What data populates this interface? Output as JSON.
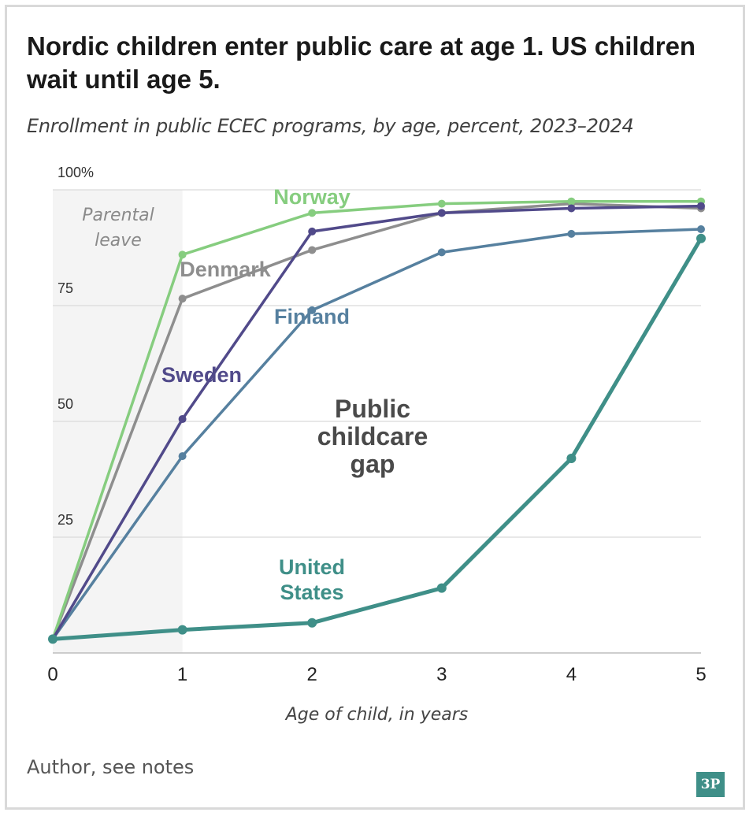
{
  "title": "Nordic children enter public care at age 1. US children wait until age 5.",
  "subtitle": "Enrollment in public ECEC programs, by age, percent, 2023–2024",
  "source": "Author, see notes",
  "logo": "3P",
  "chart_data": {
    "type": "line",
    "x": [
      0,
      1,
      2,
      3,
      4,
      5
    ],
    "xlabel": "Age of child, in years",
    "ylabel": "",
    "xlim": [
      0,
      5
    ],
    "ylim": [
      0,
      100
    ],
    "y_ticks": [
      {
        "value": 25,
        "label": "25"
      },
      {
        "value": 50,
        "label": "50"
      },
      {
        "value": 75,
        "label": "75"
      },
      {
        "value": 100,
        "label": "100%"
      }
    ],
    "x_tick_labels": [
      "0",
      "1",
      "2",
      "3",
      "4",
      "5"
    ],
    "grid": true,
    "shaded_region": {
      "x_from": 0,
      "x_to": 1,
      "label_lines": [
        "Parental",
        "leave"
      ]
    },
    "series": [
      {
        "name": "Norway",
        "color": "#86cd7f",
        "label_lines": [
          "Norway"
        ],
        "values": [
          3,
          86,
          95,
          97,
          97.5,
          97.5
        ]
      },
      {
        "name": "Denmark",
        "color": "#8e8e8e",
        "label_lines": [
          "Denmark"
        ],
        "values": [
          3,
          76.5,
          87,
          95,
          97,
          96
        ]
      },
      {
        "name": "Sweden",
        "color": "#514a8a",
        "label_lines": [
          "Sweden"
        ],
        "values": [
          3,
          50.5,
          91,
          95,
          96,
          96.5
        ]
      },
      {
        "name": "Finland",
        "color": "#56809f",
        "label_lines": [
          "Finland"
        ],
        "values": [
          3,
          42.5,
          74,
          86.5,
          90.5,
          91.5
        ]
      },
      {
        "name": "United States",
        "color": "#3f8f88",
        "label_lines": [
          "United",
          "States"
        ],
        "values": [
          3,
          5,
          6.5,
          14,
          42,
          89.5
        ]
      }
    ],
    "annotation": {
      "label_lines": [
        "Public",
        "childcare",
        "gap"
      ]
    }
  }
}
